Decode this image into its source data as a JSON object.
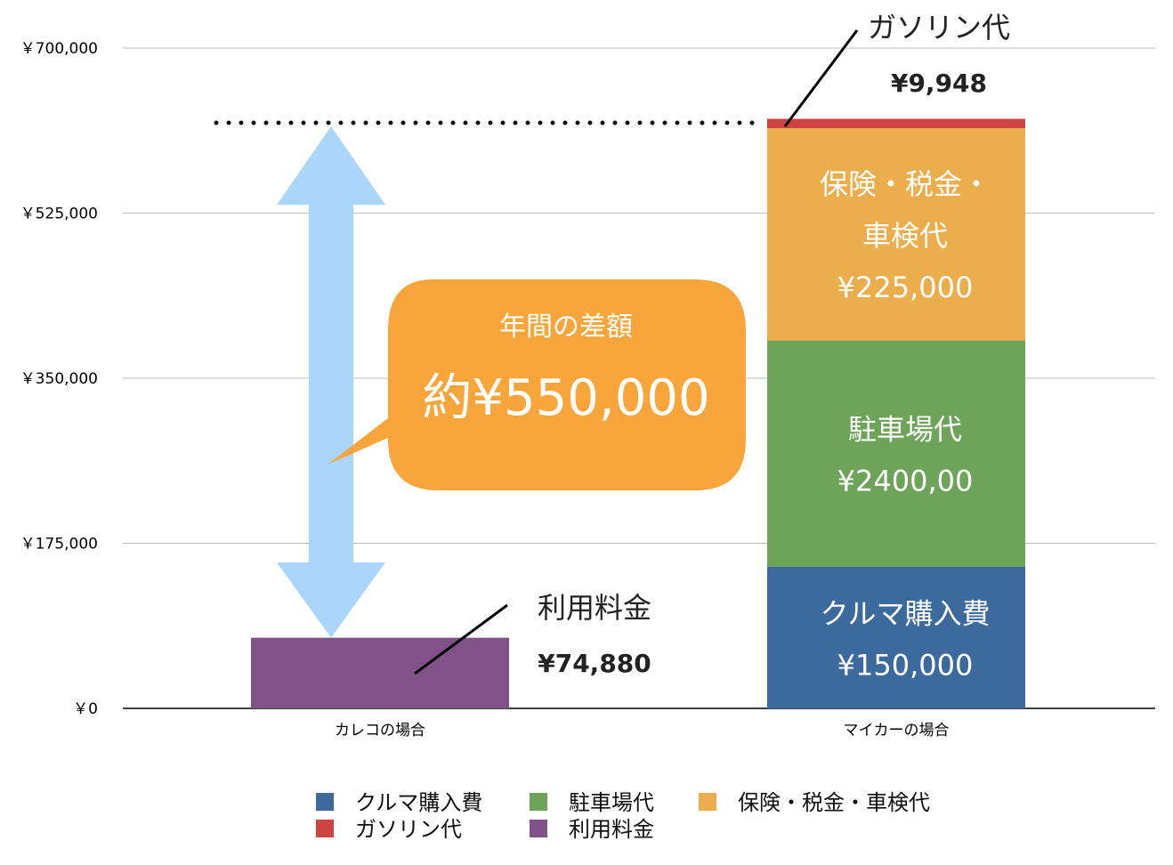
{
  "chart_data": {
    "type": "bar",
    "stacked": true,
    "categories": [
      "カレコの場合",
      "マイカーの場合"
    ],
    "ylim": [
      0,
      700000
    ],
    "yticks": [
      "￥700,000",
      "￥525,000",
      "￥350,000",
      "￥175,000",
      "￥0"
    ],
    "ytick_values": [
      700000,
      525000,
      350000,
      175000,
      0
    ],
    "grid": true,
    "series": [
      {
        "name": "クルマ購入費",
        "color": "#3c6a9c",
        "values": [
          0,
          150000
        ],
        "label_lines": [
          "クルマ購入費"
        ],
        "value_text": "¥150,000"
      },
      {
        "name": "駐車場代",
        "color": "#6ea45a",
        "values": [
          0,
          240000
        ],
        "label_lines": [
          "駐車場代"
        ],
        "value_text": "¥2400,00"
      },
      {
        "name": "保険・税金・車検代",
        "color": "#ecae4c",
        "values": [
          0,
          225000
        ],
        "label_lines": [
          "保険・税金・",
          "車検代"
        ],
        "value_text": "¥225,000"
      },
      {
        "name": "ガソリン代",
        "color": "#cf4440",
        "values": [
          0,
          9948
        ],
        "label_lines": [
          "ガソリン代"
        ],
        "value_text": "¥9,948"
      },
      {
        "name": "利用料金",
        "color": "#805288",
        "values": [
          74880,
          0
        ],
        "label_lines": [
          "利用料金"
        ],
        "value_text": "¥74,880"
      }
    ],
    "legend": {
      "placement": "bottom",
      "items": [
        "クルマ購入費",
        "駐車場代",
        "保険・税金・車検代",
        "ガソリン代",
        "利用料金"
      ]
    },
    "annotation": {
      "title": "年間の差額",
      "value": "約¥550,000",
      "bubble_color": "#f8a53c",
      "arrow_color": "#aad6fc"
    }
  }
}
